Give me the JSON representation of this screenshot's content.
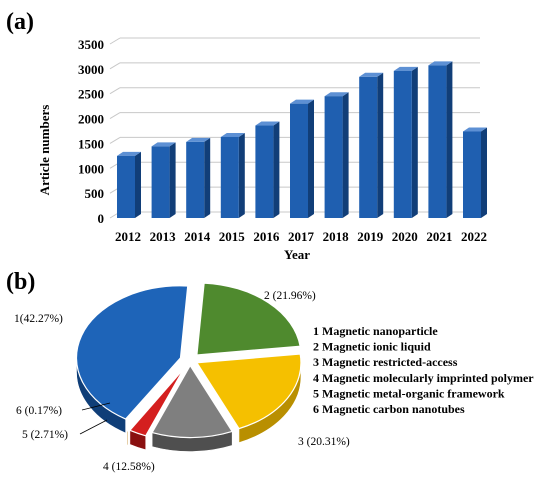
{
  "panels": {
    "a_label": "(a)",
    "b_label": "(b)"
  },
  "colors": {
    "bar_front": "#1f5fb0",
    "bar_side": "#113e78",
    "bar_top": "#5d90d4",
    "grid": "#c8c8c8",
    "pie": [
      "#1e64b8",
      "#4f8a2e",
      "#f5c000",
      "#7f7f7f",
      "#d41f1f",
      "#f2a91b"
    ],
    "pie_side": [
      "#0f3e78",
      "#2f5a18",
      "#b98f00",
      "#4f4f4f",
      "#8a1010",
      "#b77a0a"
    ]
  },
  "chart_data": [
    {
      "type": "bar",
      "title": "",
      "xlabel": "Year",
      "ylabel": "Article numbers",
      "categories": [
        "2012",
        "2013",
        "2014",
        "2015",
        "2016",
        "2017",
        "2018",
        "2019",
        "2020",
        "2021",
        "2022"
      ],
      "values": [
        1250,
        1440,
        1530,
        1630,
        1860,
        2300,
        2450,
        2840,
        2960,
        3070,
        1740
      ],
      "ylim": [
        0,
        3500
      ],
      "yticks": [
        0,
        500,
        1000,
        1500,
        2000,
        2500,
        3000,
        3500
      ],
      "grid": true,
      "style": "3d"
    },
    {
      "type": "pie",
      "title": "",
      "style": "3d-exploded",
      "legend_position": "right",
      "slices": [
        {
          "id": "1",
          "name": "Magnetic nanoparticle",
          "value": 42.27,
          "label": "1(42.27%)",
          "legend": "1 Magnetic nanoparticle"
        },
        {
          "id": "2",
          "name": "Magnetic ionic liquid",
          "value": 21.96,
          "label": "2 (21.96%)",
          "legend": "2 Magnetic ionic liquid"
        },
        {
          "id": "3",
          "name": "Magnetic restricted-access",
          "value": 20.31,
          "label": "3 (20.31%)",
          "legend": "3 Magnetic restricted-access"
        },
        {
          "id": "4",
          "name": "Magnetic molecularly imprinted polymer",
          "value": 12.58,
          "label": "4 (12.58%)",
          "legend": "4 Magnetic molecularly imprinted polymer"
        },
        {
          "id": "5",
          "name": "Magnetic metal-organic framework",
          "value": 2.71,
          "label": "5 (2.71%)",
          "legend": "5 Magnetic metal-organic framework"
        },
        {
          "id": "6",
          "name": "Magnetic carbon nanotubes",
          "value": 0.17,
          "label": "6 (0.17%)",
          "legend": "6 Magnetic carbon nanotubes"
        }
      ]
    }
  ]
}
